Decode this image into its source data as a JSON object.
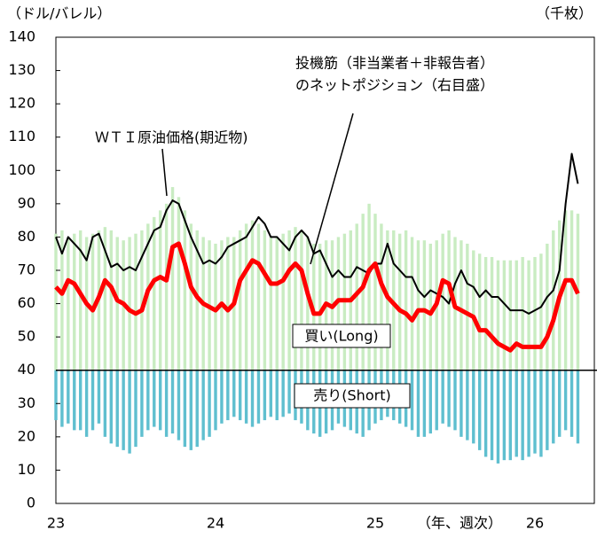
{
  "chart_data": {
    "type": "combo",
    "y_label": "（ドル/バレル）",
    "y2_label": "（千枚）",
    "x_label": "（年、週次）",
    "categories": [
      "23",
      null,
      null,
      null,
      null,
      null,
      null,
      null,
      null,
      null,
      null,
      null,
      null,
      null,
      null,
      null,
      null,
      null,
      null,
      null,
      null,
      null,
      null,
      null,
      null,
      null,
      "24",
      null,
      null,
      null,
      null,
      null,
      null,
      null,
      null,
      null,
      null,
      null,
      null,
      null,
      null,
      null,
      null,
      null,
      null,
      null,
      null,
      null,
      null,
      null,
      null,
      null,
      "25",
      null,
      null,
      null,
      null,
      null,
      null,
      null,
      null,
      null,
      null,
      null,
      null,
      null,
      null,
      null,
      null,
      null,
      null,
      null,
      null,
      null,
      null,
      null,
      null,
      null,
      "26",
      null,
      null,
      null,
      null,
      null,
      null,
      null
    ],
    "ylim": [
      0,
      140
    ],
    "yticks": [
      0,
      10,
      20,
      30,
      40,
      50,
      60,
      70,
      80,
      90,
      100,
      110,
      120,
      130,
      140
    ],
    "baseline": 40,
    "series": [
      {
        "name": "買い(Long)",
        "kind": "bar",
        "color": "#c9ecc2",
        "values": [
          81,
          82,
          80,
          81,
          82,
          80,
          81,
          82,
          83,
          82,
          80,
          79,
          80,
          81,
          82,
          84,
          86,
          88,
          90,
          95,
          92,
          88,
          84,
          82,
          80,
          79,
          78,
          79,
          80,
          80,
          82,
          84,
          85,
          84,
          82,
          80,
          80,
          81,
          82,
          83,
          82,
          80,
          78,
          78,
          79,
          79,
          80,
          81,
          82,
          84,
          87,
          90,
          87,
          84,
          82,
          82,
          81,
          82,
          80,
          79,
          79,
          78,
          79,
          81,
          82,
          80,
          79,
          78,
          76,
          75,
          74,
          74,
          73,
          73,
          73,
          73,
          74,
          73,
          74,
          75,
          78,
          82,
          85,
          88,
          88,
          87
        ]
      },
      {
        "name": "売り(Short)",
        "kind": "bar",
        "color": "#5fbfcf",
        "values": [
          25,
          23,
          24,
          22,
          22,
          20,
          22,
          24,
          20,
          18,
          17,
          16,
          15,
          17,
          20,
          22,
          23,
          22,
          20,
          21,
          19,
          17,
          16,
          17,
          19,
          20,
          22,
          24,
          25,
          26,
          25,
          24,
          23,
          24,
          25,
          26,
          25,
          26,
          27,
          25,
          24,
          22,
          21,
          20,
          21,
          22,
          24,
          23,
          22,
          21,
          20,
          22,
          24,
          25,
          26,
          25,
          24,
          23,
          22,
          20,
          20,
          21,
          22,
          24,
          23,
          22,
          20,
          19,
          18,
          16,
          14,
          13,
          12,
          13,
          13,
          14,
          13,
          14,
          15,
          14,
          16,
          18,
          20,
          22,
          20,
          18
        ]
      },
      {
        "name": "ＷＴＩ原油価格(期近物)",
        "kind": "line",
        "color": "#000000",
        "width": 2,
        "values": [
          80,
          75,
          80,
          78,
          76,
          73,
          80,
          81,
          76,
          71,
          72,
          70,
          71,
          70,
          74,
          78,
          82,
          83,
          88,
          91,
          90,
          85,
          80,
          76,
          72,
          73,
          72,
          74,
          77,
          78,
          79,
          80,
          83,
          86,
          84,
          80,
          80,
          78,
          76,
          80,
          82,
          80,
          75,
          76,
          72,
          68,
          70,
          68,
          68,
          71,
          70,
          69,
          72,
          72,
          78,
          72,
          70,
          68,
          68,
          64,
          62,
          64,
          63,
          62,
          60,
          66,
          70,
          66,
          65,
          62,
          64,
          62,
          62,
          60,
          58,
          58,
          58,
          57,
          58,
          59,
          62,
          64,
          70,
          90,
          105,
          96
        ]
      },
      {
        "kind": "line",
        "axis": "y2",
        "color": "#ff0000",
        "width": 5,
        "values": [
          65,
          63,
          67,
          66,
          63,
          60,
          58,
          62,
          67,
          65,
          61,
          60,
          58,
          57,
          58,
          64,
          67,
          68,
          67,
          77,
          78,
          72,
          65,
          62,
          60,
          59,
          58,
          60,
          58,
          60,
          67,
          70,
          73,
          72,
          69,
          66,
          66,
          67,
          70,
          72,
          70,
          63,
          57,
          57,
          60,
          59,
          61,
          61,
          61,
          63,
          65,
          70,
          72,
          66,
          62,
          60,
          58,
          57,
          55,
          58,
          58,
          57,
          60,
          67,
          66,
          59,
          58,
          57,
          56,
          52,
          52,
          50,
          48,
          47,
          46,
          48,
          47,
          47,
          47,
          47,
          50,
          55,
          62,
          67,
          67,
          63
        ]
      }
    ],
    "annotations": [
      "投機筋（非当業者＋非報告者）",
      "のネットポジション（右目盛）"
    ]
  }
}
